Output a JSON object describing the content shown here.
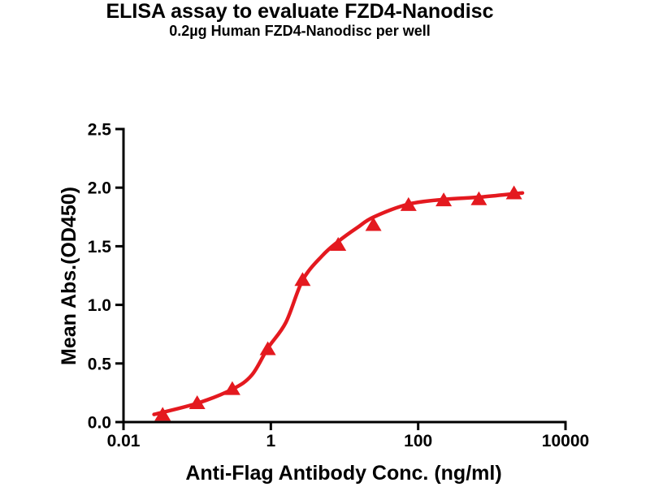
{
  "figure": {
    "title": "ELISA assay to evaluate FZD4-Nanodisc",
    "subtitle": "0.2µg Human FZD4-Nanodisc per well"
  },
  "chart_data": {
    "type": "scatter",
    "title": "ELISA assay to evaluate FZD4-Nanodisc",
    "subtitle": "0.2µg Human FZD4-Nanodisc per well",
    "xlabel": "Anti-Flag Antibody Conc. (ng/ml)",
    "ylabel": "Mean Abs.(OD450)",
    "x_scale": "log10",
    "xlim": [
      0.01,
      10000
    ],
    "ylim": [
      0,
      2.5
    ],
    "grid": false,
    "legend": false,
    "x_ticks": [
      {
        "value": 0.01,
        "label": "0.01"
      },
      {
        "value": 1,
        "label": "1"
      },
      {
        "value": 100,
        "label": "100"
      },
      {
        "value": 10000,
        "label": "10000"
      }
    ],
    "y_ticks": [
      {
        "value": 0.0,
        "label": "0.0"
      },
      {
        "value": 0.5,
        "label": "0.5"
      },
      {
        "value": 1.0,
        "label": "1.0"
      },
      {
        "value": 1.5,
        "label": "1.5"
      },
      {
        "value": 2.0,
        "label": "2.0"
      },
      {
        "value": 2.5,
        "label": "2.5"
      }
    ],
    "points": {
      "x": [
        0.034,
        0.1,
        0.3,
        0.91,
        2.7,
        8.2,
        24.7,
        74,
        222,
        667,
        2000
      ],
      "y": [
        0.07,
        0.17,
        0.29,
        0.63,
        1.22,
        1.52,
        1.69,
        1.86,
        1.9,
        1.91,
        1.96
      ]
    },
    "fit_curve": [
      [
        0.026,
        0.065
      ],
      [
        0.1,
        0.16
      ],
      [
        0.3,
        0.28
      ],
      [
        0.55,
        0.4
      ],
      [
        0.91,
        0.63
      ],
      [
        1.6,
        0.85
      ],
      [
        2.7,
        1.21
      ],
      [
        5.0,
        1.42
      ],
      [
        8.2,
        1.54
      ],
      [
        15,
        1.66
      ],
      [
        25,
        1.75
      ],
      [
        75,
        1.86
      ],
      [
        230,
        1.9
      ],
      [
        700,
        1.92
      ],
      [
        2600,
        1.955
      ]
    ],
    "marker": {
      "shape": "triangle-up",
      "color": "#e4191f",
      "width": 20,
      "height": 17
    },
    "line": {
      "color": "#e4191f",
      "width": 4.5
    },
    "axis_color": "#000000"
  }
}
